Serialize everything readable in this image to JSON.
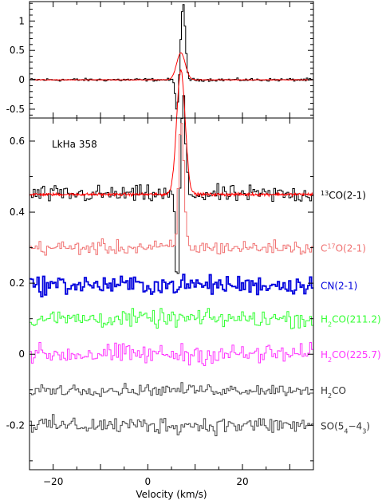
{
  "chart_data": [
    {
      "type": "line",
      "panel": "top",
      "x_range": [
        -25,
        35
      ],
      "y_range": [
        -0.65,
        1.33
      ],
      "y_ticks": [
        {
          "value": 1,
          "label": "1"
        },
        {
          "value": 0.5,
          "label": "0.5"
        },
        {
          "value": 0,
          "label": "0"
        },
        {
          "value": -0.5,
          "label": "-0.5"
        }
      ],
      "x_ticks": [
        -20,
        0,
        20
      ],
      "series": [
        {
          "color": "#000000",
          "style": "histogram",
          "baseline": 0,
          "noise": 0.012,
          "features": [
            {
              "x": 6.2,
              "amp": -0.58,
              "width": 0.35
            },
            {
              "x": 7.5,
              "amp": 1.22,
              "width": 0.45
            },
            {
              "x": 6.8,
              "amp": 0.15,
              "width": 0.5
            }
          ]
        },
        {
          "color": "#ff0000",
          "style": "smooth",
          "baseline": 0,
          "features": [
            {
              "x": 7.0,
              "amp": 0.46,
              "width": 0.9
            }
          ]
        }
      ]
    },
    {
      "type": "line",
      "panel": "bottom",
      "annotation": "LkHa 358",
      "x_range": [
        -25,
        35
      ],
      "y_range": [
        -0.325,
        0.665
      ],
      "xlabel": "Velocity (km/s)",
      "y_ticks": [
        {
          "value": 0.6,
          "label": "0.6"
        },
        {
          "value": 0.4,
          "label": "0.4"
        },
        {
          "value": 0.2,
          "label": "0.2"
        },
        {
          "value": 0,
          "label": "0"
        },
        {
          "value": -0.2,
          "label": "-0.2"
        }
      ],
      "x_ticks": [
        {
          "value": -20,
          "label": "−20"
        },
        {
          "value": 0,
          "label": "0"
        },
        {
          "value": 20,
          "label": "20"
        }
      ],
      "series": [
        {
          "name": "CO(2-1)",
          "label_parts": [
            {
              "text": "13",
              "sup": true
            },
            {
              "text": "CO(2-1)"
            }
          ],
          "color": "#000000",
          "baseline": 0.45,
          "noise": 0.012,
          "fit": {
            "color": "#ff0000",
            "amp": 0.35,
            "x": 7.0,
            "width": 0.9
          },
          "features": [
            {
              "x": 6.2,
              "amp": -0.27,
              "width": 0.35
            },
            {
              "x": 7.5,
              "amp": 0.27,
              "width": 0.45
            }
          ]
        },
        {
          "name": "O(2-1)",
          "label_parts": [
            {
              "text": "C"
            },
            {
              "text": "17",
              "sup": true
            },
            {
              "text": "O(2-1)"
            }
          ],
          "color": "#f07070",
          "baseline": 0.3,
          "noise": 0.01,
          "features": [
            {
              "x": 7.1,
              "amp": 0.36,
              "width": 0.55
            }
          ]
        },
        {
          "name": "CN(2-1)",
          "label_parts": [
            {
              "text": "CN(2-1)"
            }
          ],
          "color": "#0000dd",
          "baseline": 0.195,
          "noise": 0.013,
          "features": []
        },
        {
          "name": "CO(211.2)",
          "label_parts": [
            {
              "text": "H"
            },
            {
              "text": "2",
              "sub": true
            },
            {
              "text": "CO(211.2)"
            }
          ],
          "color": "#33ff33",
          "baseline": 0.1,
          "noise": 0.012,
          "features": []
        },
        {
          "name": "CO(225.7)",
          "label_parts": [
            {
              "text": "H"
            },
            {
              "text": "2",
              "sub": true
            },
            {
              "text": "CO(225.7)"
            }
          ],
          "color": "#ff33ff",
          "baseline": 0.0,
          "noise": 0.014,
          "features": []
        },
        {
          "name": "CO",
          "label_parts": [
            {
              "text": "H"
            },
            {
              "text": "2",
              "sub": true
            },
            {
              "text": "CO"
            }
          ],
          "color": "#444444",
          "baseline": -0.1,
          "noise": 0.008,
          "features": []
        },
        {
          "name": "SO",
          "label_parts": [
            {
              "text": "SO(5"
            },
            {
              "text": "4",
              "sub": true
            },
            {
              "text": "−4"
            },
            {
              "text": "3",
              "sub": true
            },
            {
              "text": ")"
            }
          ],
          "color": "#444444",
          "baseline": -0.2,
          "noise": 0.012,
          "features": []
        }
      ]
    }
  ]
}
